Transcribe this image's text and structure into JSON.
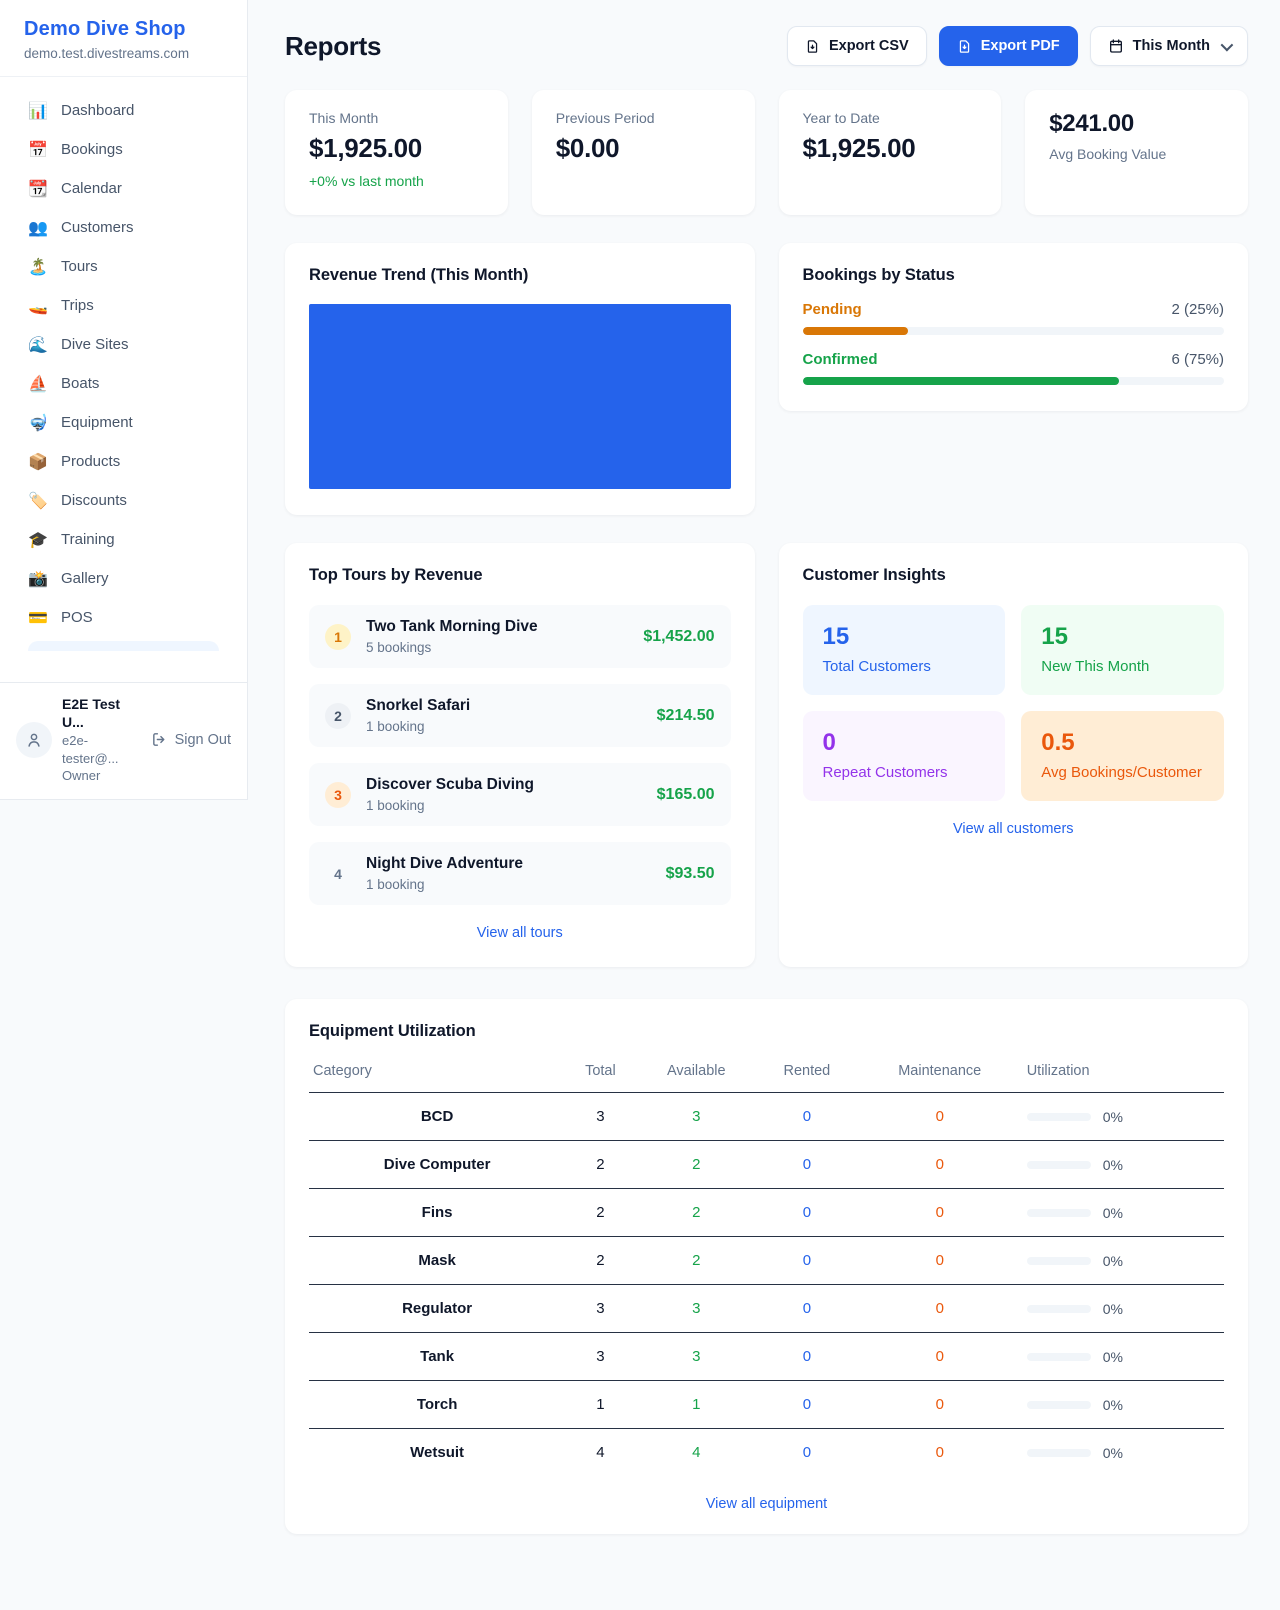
{
  "sidebar": {
    "shop_name": "Demo Dive Shop",
    "shop_domain": "demo.test.divestreams.com",
    "items": [
      {
        "icon": "bar-chart",
        "emoji": "📊",
        "label": "Dashboard"
      },
      {
        "icon": "calendar",
        "emoji": "📅",
        "label": "Bookings"
      },
      {
        "icon": "tear-off-calendar",
        "emoji": "📆",
        "label": "Calendar"
      },
      {
        "icon": "people",
        "emoji": "👥",
        "label": "Customers"
      },
      {
        "icon": "desert-island",
        "emoji": "🏝️",
        "label": "Tours"
      },
      {
        "icon": "speedboat",
        "emoji": "🚤",
        "label": "Trips"
      },
      {
        "icon": "water-wave",
        "emoji": "🌊",
        "label": "Dive Sites"
      },
      {
        "icon": "sailboat",
        "emoji": "⛵",
        "label": "Boats"
      },
      {
        "icon": "diving-mask",
        "emoji": "🤿",
        "label": "Equipment"
      },
      {
        "icon": "package",
        "emoji": "📦",
        "label": "Products"
      },
      {
        "icon": "label-tag",
        "emoji": "🏷️",
        "label": "Discounts"
      },
      {
        "icon": "graduation-cap",
        "emoji": "🎓",
        "label": "Training"
      },
      {
        "icon": "camera-flash",
        "emoji": "📸",
        "label": "Gallery"
      },
      {
        "icon": "credit-card",
        "emoji": "💳",
        "label": "POS"
      }
    ],
    "user": {
      "name": "E2E Test U...",
      "email": "e2e-tester@...",
      "role": "Owner",
      "sign_out_label": "Sign Out"
    }
  },
  "header": {
    "title": "Reports",
    "export_csv_label": "Export CSV",
    "export_pdf_label": "Export PDF",
    "period_label": "This Month"
  },
  "summary_cards": {
    "this_month": {
      "label": "This Month",
      "value": "$1,925.00",
      "delta": "+0% vs last month"
    },
    "previous_period": {
      "label": "Previous Period",
      "value": "$0.00"
    },
    "year_to_date": {
      "label": "Year to Date",
      "value": "$1,925.00"
    },
    "avg_booking": {
      "value": "$241.00",
      "label": "Avg Booking Value"
    }
  },
  "revenue_trend": {
    "title": "Revenue Trend (This Month)",
    "fill_color": "#2563eb"
  },
  "bookings_by_status": {
    "title": "Bookings by Status",
    "rows": [
      {
        "label": "Pending",
        "value_text": "2 (25%)",
        "count": 2,
        "percent": 25,
        "color": "#d97706"
      },
      {
        "label": "Confirmed",
        "value_text": "6 (75%)",
        "count": 6,
        "percent": 75,
        "color": "#16a34a"
      }
    ]
  },
  "top_tours": {
    "title": "Top Tours by Revenue",
    "items": [
      {
        "rank": "1",
        "name": "Two Tank Morning Dive",
        "bookings": "5 bookings",
        "revenue": "$1,452.00"
      },
      {
        "rank": "2",
        "name": "Snorkel Safari",
        "bookings": "1 booking",
        "revenue": "$214.50"
      },
      {
        "rank": "3",
        "name": "Discover Scuba Diving",
        "bookings": "1 booking",
        "revenue": "$165.00"
      },
      {
        "rank": "4",
        "name": "Night Dive Adventure",
        "bookings": "1 booking",
        "revenue": "$93.50"
      }
    ],
    "view_all_label": "View all tours"
  },
  "customer_insights": {
    "title": "Customer Insights",
    "tiles": [
      {
        "value": "15",
        "label": "Total Customers",
        "color": "#2563eb",
        "bg": "#eff6ff"
      },
      {
        "value": "15",
        "label": "New This Month",
        "color": "#16a34a",
        "bg": "#f0fdf4"
      },
      {
        "value": "0",
        "label": "Repeat Customers",
        "color": "#9333ea",
        "bg": "#faf5ff"
      },
      {
        "value": "0.5",
        "label": "Avg Bookings/Customer",
        "color": "#ea580c",
        "bg": "#ffedd5"
      }
    ],
    "view_all_label": "View all customers"
  },
  "equipment_utilization": {
    "title": "Equipment Utilization",
    "columns": [
      "Category",
      "Total",
      "Available",
      "Rented",
      "Maintenance",
      "Utilization"
    ],
    "rows": [
      {
        "category": "BCD",
        "total": "3",
        "available": "3",
        "rented": "0",
        "maintenance": "0",
        "utilization": "0%",
        "utilization_percent": 0
      },
      {
        "category": "Dive Computer",
        "total": "2",
        "available": "2",
        "rented": "0",
        "maintenance": "0",
        "utilization": "0%",
        "utilization_percent": 0
      },
      {
        "category": "Fins",
        "total": "2",
        "available": "2",
        "rented": "0",
        "maintenance": "0",
        "utilization": "0%",
        "utilization_percent": 0
      },
      {
        "category": "Mask",
        "total": "2",
        "available": "2",
        "rented": "0",
        "maintenance": "0",
        "utilization": "0%",
        "utilization_percent": 0
      },
      {
        "category": "Regulator",
        "total": "3",
        "available": "3",
        "rented": "0",
        "maintenance": "0",
        "utilization": "0%",
        "utilization_percent": 0
      },
      {
        "category": "Tank",
        "total": "3",
        "available": "3",
        "rented": "0",
        "maintenance": "0",
        "utilization": "0%",
        "utilization_percent": 0
      },
      {
        "category": "Torch",
        "total": "1",
        "available": "1",
        "rented": "0",
        "maintenance": "0",
        "utilization": "0%",
        "utilization_percent": 0
      },
      {
        "category": "Wetsuit",
        "total": "4",
        "available": "4",
        "rented": "0",
        "maintenance": "0",
        "utilization": "0%",
        "utilization_percent": 0
      }
    ],
    "view_all_label": "View all equipment"
  }
}
